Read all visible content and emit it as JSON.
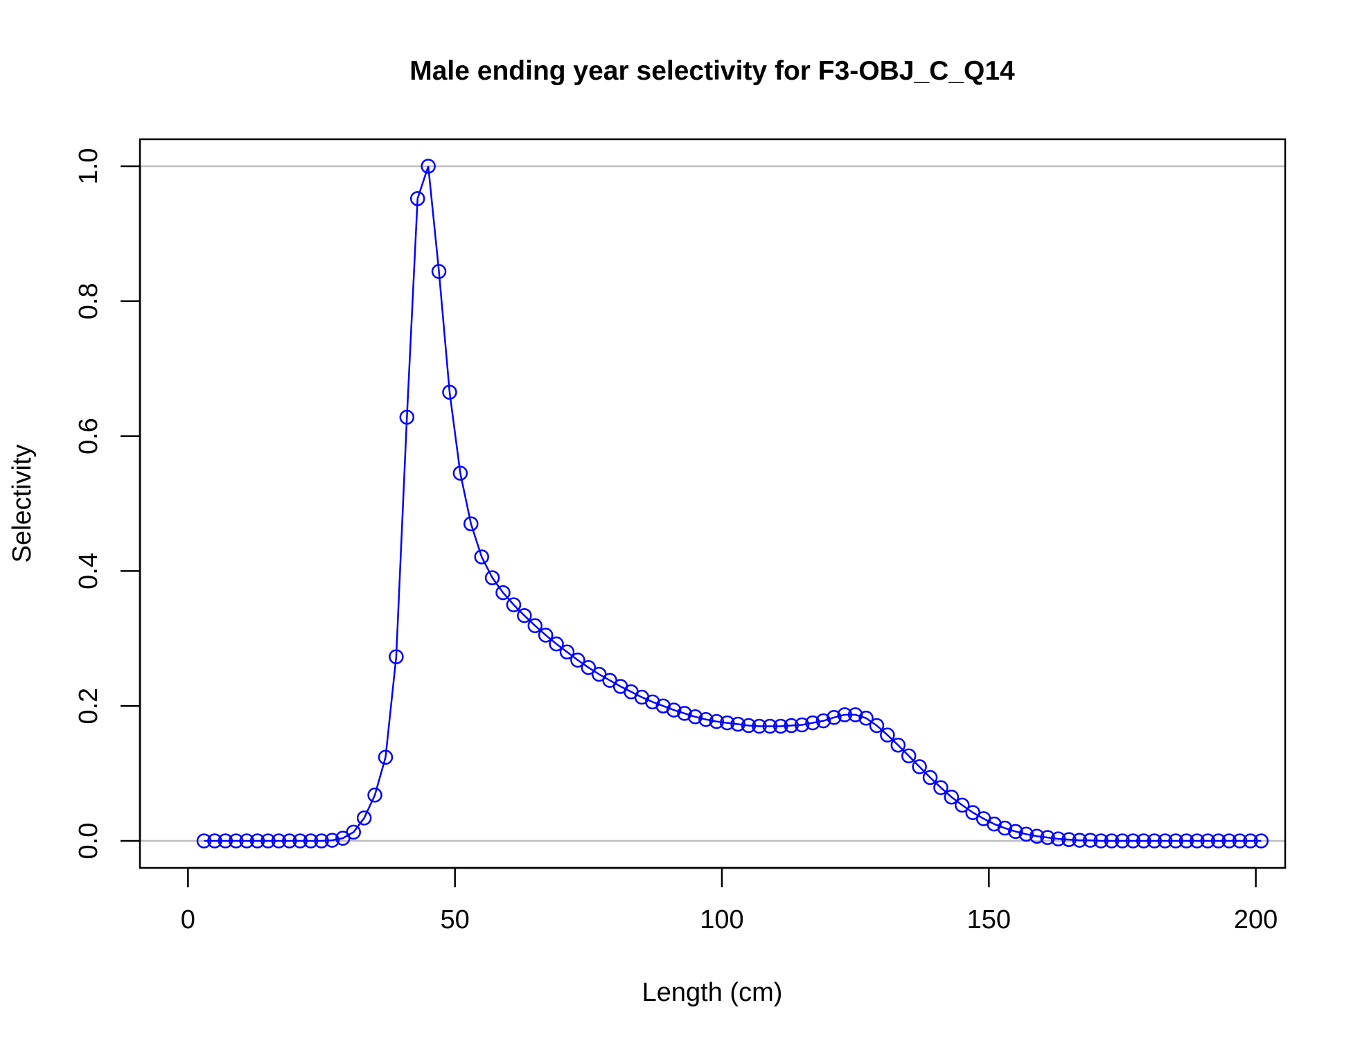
{
  "chart_data": {
    "type": "line",
    "title": "Male ending year selectivity for F3-OBJ_C_Q14",
    "xlabel": "Length (cm)",
    "ylabel": "Selectivity",
    "xlim": [
      -9,
      205.5
    ],
    "ylim": [
      -0.04,
      1.04
    ],
    "x_ticks": [
      0,
      50,
      100,
      150,
      200
    ],
    "x_tick_labels": [
      "0",
      "50",
      "100",
      "150",
      "200"
    ],
    "y_ticks": [
      0.0,
      0.2,
      0.4,
      0.6,
      0.8,
      1.0
    ],
    "y_tick_labels": [
      "0.0",
      "0.2",
      "0.4",
      "0.6",
      "0.8",
      "1.0"
    ],
    "reference_lines": [
      0,
      1
    ],
    "grid": false,
    "series": [
      {
        "color": "#0000ff",
        "marker": "open-circle",
        "x": [
          3,
          5,
          7,
          9,
          11,
          13,
          15,
          17,
          19,
          21,
          23,
          25,
          27,
          29,
          31,
          33,
          35,
          37,
          39,
          41,
          43,
          45,
          47,
          49,
          51,
          53,
          55,
          57,
          59,
          61,
          63,
          65,
          67,
          69,
          71,
          73,
          75,
          77,
          79,
          81,
          83,
          85,
          87,
          89,
          91,
          93,
          95,
          97,
          99,
          101,
          103,
          105,
          107,
          109,
          111,
          113,
          115,
          117,
          119,
          121,
          123,
          125,
          127,
          129,
          131,
          133,
          135,
          137,
          139,
          141,
          143,
          145,
          147,
          149,
          151,
          153,
          155,
          157,
          159,
          161,
          163,
          165,
          167,
          169,
          171,
          173,
          175,
          177,
          179,
          181,
          183,
          185,
          187,
          189,
          191,
          193,
          195,
          197,
          199,
          201
        ],
        "y": [
          0,
          0,
          0,
          0,
          0,
          0,
          0,
          0,
          0,
          0,
          0,
          0,
          0.001,
          0.004,
          0.013,
          0.034,
          0.068,
          0.124,
          0.273,
          0.628,
          0.952,
          1.0,
          0.844,
          0.665,
          0.545,
          0.47,
          0.421,
          0.39,
          0.368,
          0.35,
          0.334,
          0.319,
          0.305,
          0.292,
          0.28,
          0.268,
          0.257,
          0.247,
          0.238,
          0.229,
          0.221,
          0.213,
          0.206,
          0.2,
          0.194,
          0.189,
          0.184,
          0.18,
          0.177,
          0.175,
          0.173,
          0.171,
          0.17,
          0.17,
          0.17,
          0.171,
          0.172,
          0.175,
          0.178,
          0.183,
          0.187,
          0.187,
          0.182,
          0.171,
          0.157,
          0.142,
          0.126,
          0.11,
          0.094,
          0.079,
          0.065,
          0.053,
          0.042,
          0.033,
          0.025,
          0.019,
          0.014,
          0.01,
          0.007,
          0.005,
          0.003,
          0.002,
          0.001,
          0.001,
          0,
          0,
          0,
          0,
          0,
          0,
          0,
          0,
          0,
          0,
          0,
          0,
          0,
          0,
          0,
          0
        ]
      }
    ]
  }
}
